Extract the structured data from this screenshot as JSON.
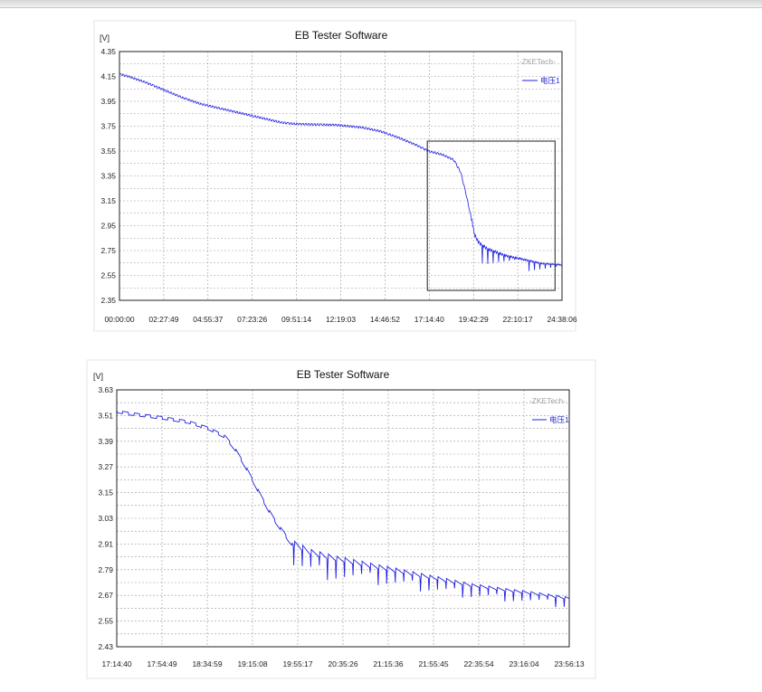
{
  "chart_data": [
    {
      "type": "line",
      "title": "EB Tester Software",
      "ylabel": "[V]",
      "watermark": "-ZKETech-",
      "legend": "电压1",
      "legend_position": "top-right",
      "grid": true,
      "color": "#2020e0",
      "ylim": [
        2.35,
        4.35
      ],
      "yticks": [
        "4.35",
        "4.15",
        "3.95",
        "3.75",
        "3.55",
        "3.35",
        "3.15",
        "2.95",
        "2.75",
        "2.55",
        "2.35"
      ],
      "xlim": [
        0,
        24.635
      ],
      "xticks": [
        "00:00:00",
        "02:27:49",
        "04:55:37",
        "07:23:26",
        "09:51:14",
        "12:19:03",
        "14:46:52",
        "17:14:40",
        "19:42:29",
        "22:10:17",
        "24:38:06"
      ],
      "series": [
        {
          "x": [
            0,
            0.5,
            1.5,
            2.5,
            3.5,
            4.5,
            6.0,
            7.5,
            9.0,
            9.6,
            10.5,
            12.0,
            13.5,
            14.5,
            15.5,
            16.5,
            17.2,
            18.0,
            18.6,
            19.0,
            19.3,
            19.6,
            19.75,
            20.0,
            20.5,
            21.5,
            22.5,
            23.5,
            24.635
          ],
          "y": [
            4.17,
            4.15,
            4.1,
            4.04,
            3.98,
            3.93,
            3.88,
            3.83,
            3.78,
            3.77,
            3.765,
            3.76,
            3.74,
            3.71,
            3.66,
            3.6,
            3.55,
            3.52,
            3.48,
            3.38,
            3.2,
            3.0,
            2.87,
            2.8,
            2.75,
            2.7,
            2.67,
            2.64,
            2.63
          ],
          "spikes_after": 19.6,
          "spike_depth": 0.16
        }
      ],
      "annotations": [
        {
          "type": "rectangle",
          "x0": 17.14,
          "x1": 24.25,
          "y0": 2.43,
          "y1": 3.63
        }
      ]
    },
    {
      "type": "line",
      "title": "EB Tester Software",
      "ylabel": "[V]",
      "watermark": "-ZKETech-",
      "legend": "电压1",
      "legend_position": "top-right",
      "grid": true,
      "color": "#2020e0",
      "ylim": [
        2.43,
        3.63
      ],
      "yticks": [
        "3.63",
        "3.51",
        "3.39",
        "3.27",
        "3.15",
        "3.03",
        "2.91",
        "2.79",
        "2.67",
        "2.55",
        "2.43"
      ],
      "xlim": [
        17.2444,
        23.9369
      ],
      "xticks": [
        "17:14:40",
        "17:54:49",
        "18:34:59",
        "19:15:08",
        "19:55:17",
        "20:35:26",
        "21:15:36",
        "21:55:45",
        "22:35:54",
        "23:16:04",
        "23:56:13"
      ],
      "series": [
        {
          "x": [
            17.2444,
            17.4,
            17.9,
            18.3,
            18.6,
            18.85,
            19.0,
            19.15,
            19.3,
            19.45,
            19.6,
            19.72,
            19.78,
            19.86,
            19.92,
            20.1,
            20.5,
            21.0,
            21.5,
            22.0,
            22.5,
            23.0,
            23.5,
            23.9369
          ],
          "y": [
            3.53,
            3.52,
            3.5,
            3.48,
            3.45,
            3.41,
            3.35,
            3.27,
            3.18,
            3.09,
            3.01,
            2.96,
            2.93,
            2.9,
            2.89,
            2.86,
            2.83,
            2.8,
            2.77,
            2.74,
            2.71,
            2.69,
            2.67,
            2.65
          ],
          "spikes_after": 19.86,
          "spike_depth": 0.11,
          "spike_period_hours": 0.125
        }
      ]
    }
  ]
}
